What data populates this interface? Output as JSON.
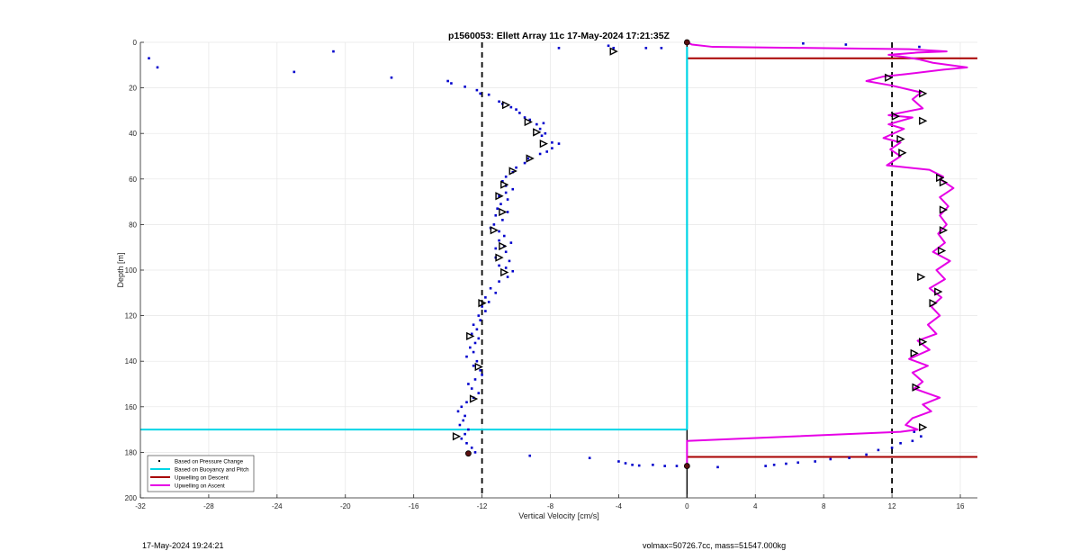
{
  "chart_data": {
    "type": "scatter",
    "title": "p1560053: Ellett Array 11c 17-May-2024 17:21:35Z",
    "xlabel": "Vertical Velocity [cm/s]",
    "ylabel": "Depth [m]",
    "xlim": [
      -32,
      17
    ],
    "ylim": [
      0,
      200
    ],
    "y_reversed": true,
    "grid": true,
    "legend_placement": "bottom-left",
    "xticks": [
      -32,
      -28,
      -24,
      -20,
      -16,
      -12,
      -8,
      -4,
      0,
      4,
      8,
      12,
      16
    ],
    "yticks": [
      0,
      20,
      40,
      60,
      80,
      100,
      120,
      140,
      160,
      180,
      200
    ],
    "legend": [
      {
        "label": "Based on Pressure Change",
        "style": "dot",
        "color": "#000000"
      },
      {
        "label": "Based on Buoyancy and Pitch",
        "style": "line",
        "color": "#00d5e6"
      },
      {
        "label": "Upwelling on Descent",
        "style": "line",
        "color": "#a80000"
      },
      {
        "label": "Upwelling on Ascent",
        "style": "line",
        "color": "#e600e6"
      }
    ],
    "reference_lines": {
      "vertical_dashed": [
        -12,
        12
      ],
      "zero_line": 0,
      "cyan_horizontal_depth": 170,
      "cyan_horizontal_range": [
        -32,
        0
      ],
      "red_horizontal_depths": [
        7,
        182
      ],
      "red_horizontal_range": [
        0,
        17
      ]
    },
    "series": [
      {
        "name": "Based on Pressure Change",
        "color": "#0000cc",
        "points": [
          [
            -31.5,
            7
          ],
          [
            -31,
            11
          ],
          [
            -23,
            13
          ],
          [
            -20.7,
            4
          ],
          [
            -17.3,
            15.5
          ],
          [
            -14,
            17
          ],
          [
            -13.8,
            18
          ],
          [
            -13,
            19.5
          ],
          [
            -12.3,
            21
          ],
          [
            -12.1,
            22.5
          ],
          [
            -11.6,
            23
          ],
          [
            -11,
            26
          ],
          [
            -10.8,
            27
          ],
          [
            -10.3,
            28.5
          ],
          [
            -10,
            29.5
          ],
          [
            -9.8,
            31
          ],
          [
            -9.5,
            33
          ],
          [
            -9.2,
            34
          ],
          [
            -8.8,
            36
          ],
          [
            -8.4,
            35.5
          ],
          [
            -8.6,
            38
          ],
          [
            -8.3,
            40
          ],
          [
            -8.5,
            41
          ],
          [
            -7.9,
            44
          ],
          [
            -7.5,
            44.5
          ],
          [
            -7.9,
            46.5
          ],
          [
            -8.2,
            48
          ],
          [
            -8.6,
            49
          ],
          [
            -9.3,
            51
          ],
          [
            -9.5,
            53
          ],
          [
            -10,
            55
          ],
          [
            -10.2,
            57
          ],
          [
            -10.6,
            59
          ],
          [
            -10.8,
            61
          ],
          [
            -10.6,
            63
          ],
          [
            -10.2,
            64.5
          ],
          [
            -10.6,
            66
          ],
          [
            -11,
            67.5
          ],
          [
            -10.5,
            69
          ],
          [
            -10.9,
            71
          ],
          [
            -11.1,
            73
          ],
          [
            -10.5,
            74.5
          ],
          [
            -11.2,
            76
          ],
          [
            -10.8,
            78
          ],
          [
            -11.3,
            80
          ],
          [
            -11.5,
            81.5
          ],
          [
            -11,
            83
          ],
          [
            -10.7,
            85
          ],
          [
            -11,
            87
          ],
          [
            -10.3,
            88
          ],
          [
            -10.7,
            89.5
          ],
          [
            -11.2,
            90.5
          ],
          [
            -10.6,
            92
          ],
          [
            -11.2,
            94.5
          ],
          [
            -10.4,
            96
          ],
          [
            -11,
            98
          ],
          [
            -10.6,
            99
          ],
          [
            -10.2,
            100.5
          ],
          [
            -10.5,
            103
          ],
          [
            -11,
            105
          ],
          [
            -11.5,
            108
          ],
          [
            -11.2,
            110
          ],
          [
            -11.8,
            112
          ],
          [
            -11.6,
            114
          ],
          [
            -12,
            116
          ],
          [
            -11.8,
            118
          ],
          [
            -12.2,
            120
          ],
          [
            -12.1,
            122
          ],
          [
            -12.5,
            124
          ],
          [
            -12.3,
            126
          ],
          [
            -12.6,
            128
          ],
          [
            -12.2,
            130
          ],
          [
            -12.4,
            132
          ],
          [
            -12.7,
            134
          ],
          [
            -12.5,
            136
          ],
          [
            -12.9,
            138
          ],
          [
            -12.3,
            140
          ],
          [
            -12.5,
            142
          ],
          [
            -12.1,
            144
          ],
          [
            -12,
            146
          ],
          [
            -12.4,
            148
          ],
          [
            -12.8,
            150
          ],
          [
            -12.6,
            152
          ],
          [
            -12.2,
            154
          ],
          [
            -12.5,
            156
          ],
          [
            -12.9,
            158
          ],
          [
            -13.2,
            160
          ],
          [
            -13.4,
            162
          ],
          [
            -13,
            164
          ],
          [
            -13.1,
            166
          ],
          [
            -13.3,
            168
          ],
          [
            -12.8,
            170
          ],
          [
            -13,
            172
          ],
          [
            -13.2,
            174
          ],
          [
            -12.9,
            176
          ],
          [
            -12.6,
            178
          ],
          [
            -12.4,
            180
          ],
          [
            -9.2,
            181.5
          ],
          [
            -5.7,
            182.5
          ],
          [
            -4,
            184
          ],
          [
            -3.6,
            184.8
          ],
          [
            -3.2,
            185.5
          ],
          [
            -2.8,
            185.8
          ],
          [
            -2,
            185.5
          ],
          [
            -1.3,
            186
          ],
          [
            -0.6,
            186
          ],
          [
            -7.5,
            2.5
          ],
          [
            -4.6,
            1.5
          ],
          [
            -4.3,
            2.5
          ],
          [
            -2.4,
            2.5
          ],
          [
            -1.5,
            2.5
          ],
          [
            6.8,
            0.5
          ],
          [
            9.3,
            1
          ],
          [
            13.6,
            2
          ],
          [
            1.8,
            186.5
          ],
          [
            4.6,
            186
          ],
          [
            5.1,
            185.5
          ],
          [
            5.8,
            185
          ],
          [
            6.5,
            184.5
          ],
          [
            7.5,
            184
          ],
          [
            8.4,
            183
          ],
          [
            9.5,
            182.5
          ],
          [
            10.5,
            181
          ],
          [
            11.2,
            179
          ],
          [
            12,
            178
          ],
          [
            12.5,
            176
          ],
          [
            13.2,
            175
          ],
          [
            13.7,
            173
          ],
          [
            13.3,
            171
          ]
        ]
      },
      {
        "name": "Based on Buoyancy and Pitch",
        "color": "#00d5e6",
        "points": [
          [
            0,
            2
          ],
          [
            0,
            170
          ]
        ]
      },
      {
        "name": "Upwelling on Ascent",
        "color": "#e600e6",
        "points": [
          [
            0,
            186
          ],
          [
            0,
            175
          ],
          [
            12.5,
            171
          ],
          [
            13.5,
            170
          ],
          [
            12.8,
            168
          ],
          [
            13.2,
            165
          ],
          [
            14.3,
            162
          ],
          [
            13.8,
            159
          ],
          [
            14.8,
            156
          ],
          [
            13.3,
            152
          ],
          [
            13.8,
            149
          ],
          [
            13.2,
            145
          ],
          [
            14.1,
            142
          ],
          [
            13,
            139
          ],
          [
            14.2,
            135
          ],
          [
            13.5,
            131
          ],
          [
            14.6,
            128
          ],
          [
            14.1,
            124
          ],
          [
            14.8,
            120
          ],
          [
            14.3,
            116
          ],
          [
            14.9,
            112
          ],
          [
            14.2,
            108
          ],
          [
            15.1,
            104
          ],
          [
            14.6,
            100
          ],
          [
            15.4,
            96
          ],
          [
            14.4,
            92
          ],
          [
            15.1,
            88
          ],
          [
            14.7,
            84
          ],
          [
            15.2,
            80
          ],
          [
            14.8,
            76
          ],
          [
            15.3,
            72
          ],
          [
            14.8,
            68
          ],
          [
            15.6,
            64
          ],
          [
            14.8,
            60
          ],
          [
            15,
            59
          ],
          [
            14.2,
            56
          ],
          [
            11.7,
            54
          ],
          [
            12.5,
            50
          ],
          [
            11.9,
            47
          ],
          [
            12.5,
            44
          ],
          [
            11.5,
            42
          ],
          [
            12.7,
            38
          ],
          [
            11.8,
            36
          ],
          [
            13.2,
            33
          ],
          [
            11.8,
            32
          ],
          [
            13.8,
            29
          ],
          [
            13.2,
            25
          ],
          [
            13.7,
            22
          ],
          [
            12,
            19
          ],
          [
            10.5,
            17
          ],
          [
            11.5,
            15
          ],
          [
            12.8,
            14
          ],
          [
            15,
            12
          ],
          [
            16.4,
            11
          ],
          [
            14.4,
            9
          ],
          [
            13.6,
            7.5
          ],
          [
            12.8,
            6.5
          ],
          [
            11.8,
            5.5
          ],
          [
            12.7,
            5
          ],
          [
            13.5,
            4.5
          ],
          [
            15.2,
            4
          ],
          [
            13,
            3
          ],
          [
            1.5,
            2
          ],
          [
            0.3,
            1
          ],
          [
            0,
            0
          ]
        ]
      }
    ],
    "markers": {
      "open_triangles": [
        [
          -10.6,
          27.5
        ],
        [
          -9.3,
          35
        ],
        [
          -8.8,
          39.5
        ],
        [
          -8.4,
          44.5
        ],
        [
          -9.2,
          51
        ],
        [
          -10.2,
          56.5
        ],
        [
          -10.7,
          62.5
        ],
        [
          -11,
          67.5
        ],
        [
          -10.8,
          74.5
        ],
        [
          -11.3,
          82.5
        ],
        [
          -10.8,
          89.5
        ],
        [
          -11,
          94.5
        ],
        [
          -10.7,
          101
        ],
        [
          -12,
          114.5
        ],
        [
          -12.7,
          129
        ],
        [
          -12.2,
          142.5
        ],
        [
          -12.5,
          156.5
        ],
        [
          -13.5,
          173
        ],
        [
          -4.3,
          4
        ],
        [
          12.2,
          32.5
        ],
        [
          13.8,
          34.5
        ],
        [
          12.5,
          42.5
        ],
        [
          12.6,
          48.5
        ],
        [
          14.8,
          59.5
        ],
        [
          15,
          61.5
        ],
        [
          15,
          73.5
        ],
        [
          15,
          82.5
        ],
        [
          14.9,
          91.5
        ],
        [
          14.7,
          109.5
        ],
        [
          14.4,
          114.5
        ],
        [
          13.8,
          131.5
        ],
        [
          13.3,
          136.5
        ],
        [
          13.4,
          151.5
        ],
        [
          13.8,
          169
        ],
        [
          13.7,
          103
        ],
        [
          11.8,
          15.5
        ],
        [
          13.8,
          22.5
        ]
      ],
      "dark_red_markers": [
        [
          -12.8,
          180.5
        ],
        [
          0,
          186
        ],
        [
          0,
          0
        ]
      ]
    }
  },
  "footer": {
    "left": "17-May-2024 19:24:21",
    "right": "volmax=50726.7cc, mass=51547.000kg"
  }
}
